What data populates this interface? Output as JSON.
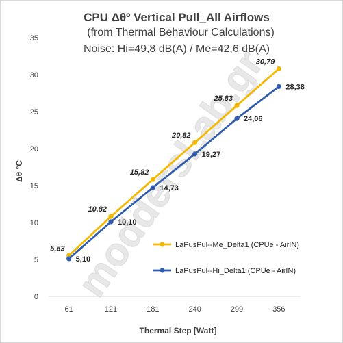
{
  "chart_data": {
    "type": "line",
    "title": "CPU  Δθº   Vertical  Pull_All Airflows",
    "subtitle": "(from Thermal Behaviour Calculations)",
    "subtitle2": "Noise:  Hi=49,8 dB(A) /  Me=42,6 dB(A)",
    "xlabel": "Thermal Step [Watt]",
    "ylabel": "Δθ °C",
    "categories": [
      "61",
      "121",
      "181",
      "240",
      "299",
      "356"
    ],
    "ylim": [
      0,
      35
    ],
    "yticks": [
      0,
      5,
      10,
      15,
      20,
      25,
      30,
      35
    ],
    "ytick_labels": [
      "0",
      "5",
      "10",
      "15",
      "20",
      "25",
      "30",
      "35"
    ],
    "grid": false,
    "legend_position": "right",
    "series": [
      {
        "name": "LaPusPul--Me_Delta1 (CPUe - AirIN)",
        "color": "#F5B800",
        "values": [
          5.53,
          10.82,
          15.82,
          20.82,
          25.83,
          30.79
        ],
        "labels": [
          "5,53",
          "10,82",
          "15,82",
          "20,82",
          "25,83",
          "30,79"
        ],
        "label_style": "italic-left"
      },
      {
        "name": "LaPusPul--Hi_Delta1 (CPUe - AirIN)",
        "color": "#2F5CAC",
        "values": [
          5.1,
          10.1,
          14.73,
          19.27,
          24.06,
          28.38
        ],
        "labels": [
          "5,10",
          "10,10",
          "14,73",
          "19,27",
          "24,06",
          "28,38"
        ],
        "label_style": "right"
      }
    ]
  },
  "watermark": "moddersLab.gr"
}
